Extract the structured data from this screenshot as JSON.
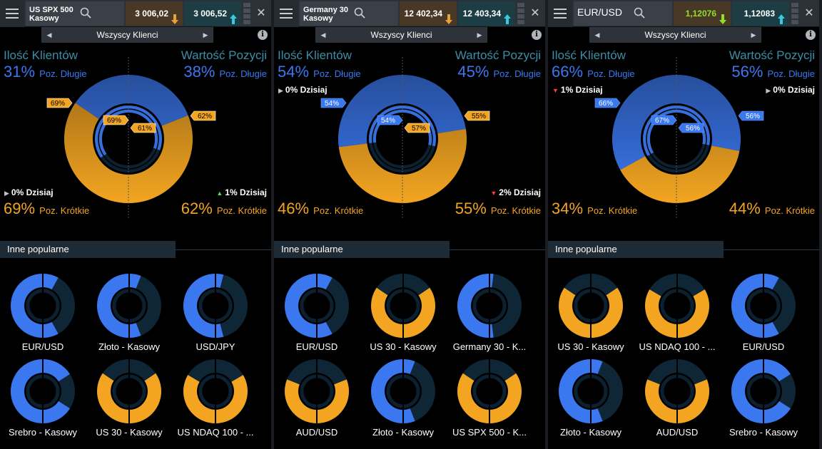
{
  "colors": {
    "long": "#3b78f0",
    "short": "#f3a521",
    "bg_ring": "#0f2636"
  },
  "labels": {
    "clients": "Ilość Klientów",
    "position": "Wartość Pozycji",
    "long_suffix": "Poz. Długie",
    "short_suffix": "Poz. Krótkie",
    "today_suffix": "Dzisiaj",
    "other_popular": "Inne popularne",
    "all_clients": "Wszyscy Klienci"
  },
  "panels": [
    {
      "instrument": "US SPX 500 Kasowy",
      "sell": "3 006,02",
      "buy": "3 006,52",
      "sell_arrow": "down",
      "buy_arrow": "up",
      "clients_long": "31%",
      "clients_short": "69%",
      "position_long": "38%",
      "position_short": "62%",
      "clients_today": "0%",
      "clients_today_dir": "flat",
      "position_today": "1%",
      "position_today_dir": "up",
      "outer_tag": "69%",
      "inner_tag": "69%",
      "inner_tag_right": "61%",
      "outer_tag_right": "62%",
      "mini": [
        {
          "name": "EUR/USD",
          "long_pct": 66
        },
        {
          "name": "Złoto - Kasowy",
          "long_pct": 62
        },
        {
          "name": "USD/JPY",
          "long_pct": 58
        },
        {
          "name": "Srebro - Kasowy",
          "long_pct": 82
        },
        {
          "name": "US 30 - Kasowy",
          "long_pct": 31
        },
        {
          "name": "US NDAQ 100 - ...",
          "long_pct": 33
        }
      ]
    },
    {
      "instrument": "Germany 30 Kasowy",
      "sell": "12 402,34",
      "buy": "12 403,34",
      "sell_arrow": "down",
      "buy_arrow": "up",
      "clients_long": "54%",
      "clients_short": "46%",
      "position_long": "45%",
      "position_short": "55%",
      "clients_today": "0%",
      "clients_today_dir": "flat",
      "position_today": "2%",
      "position_today_dir": "down",
      "outer_tag": "54%",
      "inner_tag": "54%",
      "inner_tag_right": "57%",
      "outer_tag_right": "55%",
      "mini": [
        {
          "name": "EUR/USD",
          "long_pct": 66
        },
        {
          "name": "US 30 - Kasowy",
          "long_pct": 31
        },
        {
          "name": "Germany 30 - K...",
          "long_pct": 54
        },
        {
          "name": "AUD/USD",
          "long_pct": 38
        },
        {
          "name": "Złoto - Kasowy",
          "long_pct": 62
        },
        {
          "name": "US SPX 500 - K...",
          "long_pct": 31
        }
      ]
    },
    {
      "instrument": "EUR/USD",
      "sell": "1,12076",
      "buy": "1,12083",
      "sell_arrow": "down",
      "buy_arrow": "up",
      "clients_long": "66%",
      "clients_short": "34%",
      "position_long": "56%",
      "position_short": "44%",
      "clients_today": "1%",
      "clients_today_dir": "down",
      "position_today": "0%",
      "position_today_dir": "flat",
      "outer_tag": "66%",
      "inner_tag": "67%",
      "inner_tag_right": "56%",
      "outer_tag_right": "56%",
      "mini": [
        {
          "name": "US 30 - Kasowy",
          "long_pct": 31
        },
        {
          "name": "US NDAQ 100 - ...",
          "long_pct": 33
        },
        {
          "name": "EUR/USD",
          "long_pct": 66
        },
        {
          "name": "Złoto - Kasowy",
          "long_pct": 62
        },
        {
          "name": "AUD/USD",
          "long_pct": 38
        },
        {
          "name": "Srebro - Kasowy",
          "long_pct": 82
        }
      ]
    }
  ]
}
